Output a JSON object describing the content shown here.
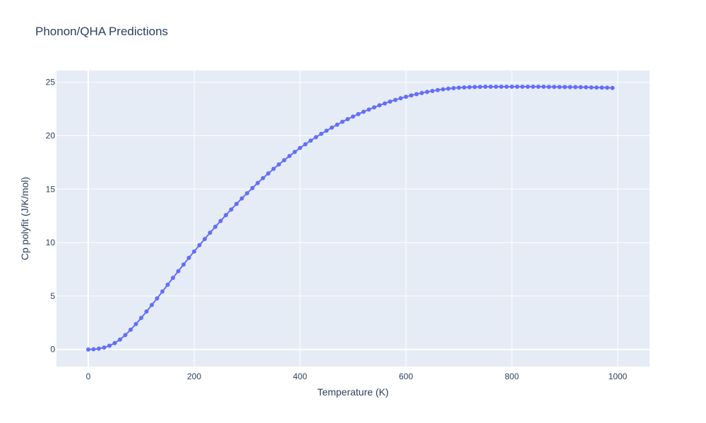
{
  "chart_data": {
    "type": "line",
    "title": "Phonon/QHA Predictions",
    "xlabel": "Temperature (K)",
    "ylabel": "Cp polyfit (J/K/mol)",
    "xlim": [
      -60,
      1060
    ],
    "ylim": [
      -1.6,
      26.1
    ],
    "xticks": [
      0,
      200,
      400,
      600,
      800,
      1000
    ],
    "yticks": [
      0,
      5,
      10,
      15,
      20,
      25
    ],
    "grid": true,
    "marker": true,
    "series_color": "#636efa",
    "plot_bg": "#e5ecf6",
    "x": [
      0,
      10,
      20,
      30,
      40,
      50,
      60,
      70,
      80,
      90,
      100,
      110,
      120,
      130,
      140,
      150,
      160,
      170,
      180,
      190,
      200,
      210,
      220,
      230,
      240,
      250,
      260,
      270,
      280,
      290,
      300,
      310,
      320,
      330,
      340,
      350,
      360,
      370,
      380,
      390,
      400,
      410,
      420,
      430,
      440,
      450,
      460,
      470,
      480,
      490,
      500,
      510,
      520,
      530,
      540,
      550,
      560,
      570,
      580,
      590,
      600,
      610,
      620,
      630,
      640,
      650,
      660,
      670,
      680,
      690,
      700,
      710,
      720,
      730,
      740,
      750,
      760,
      770,
      780,
      790,
      800,
      810,
      820,
      830,
      840,
      850,
      860,
      870,
      880,
      890,
      900,
      910,
      920,
      930,
      940,
      950,
      960,
      970,
      980,
      990
    ],
    "y": [
      0,
      0.02,
      0.08,
      0.18,
      0.35,
      0.6,
      0.93,
      1.35,
      1.85,
      2.38,
      2.95,
      3.55,
      4.16,
      4.78,
      5.42,
      6.06,
      6.7,
      7.33,
      7.95,
      8.57,
      9.17,
      9.76,
      10.34,
      10.92,
      11.48,
      12.03,
      12.57,
      13.1,
      13.62,
      14.13,
      14.62,
      15.1,
      15.57,
      16.03,
      16.47,
      16.9,
      17.31,
      17.71,
      18.1,
      18.48,
      18.85,
      19.2,
      19.54,
      19.86,
      20.17,
      20.47,
      20.76,
      21.03,
      21.3,
      21.55,
      21.79,
      22.02,
      22.24,
      22.45,
      22.65,
      22.84,
      23.02,
      23.19,
      23.35,
      23.5,
      23.64,
      23.77,
      23.89,
      24.0,
      24.1,
      24.19,
      24.27,
      24.34,
      24.4,
      24.45,
      24.49,
      24.52,
      24.54,
      24.56,
      24.57,
      24.58,
      24.58,
      24.58,
      24.58,
      24.58,
      24.58,
      24.58,
      24.58,
      24.58,
      24.58,
      24.58,
      24.58,
      24.57,
      24.57,
      24.56,
      24.56,
      24.55,
      24.55,
      24.54,
      24.53,
      24.52,
      24.51,
      24.5,
      24.49,
      24.47
    ]
  }
}
